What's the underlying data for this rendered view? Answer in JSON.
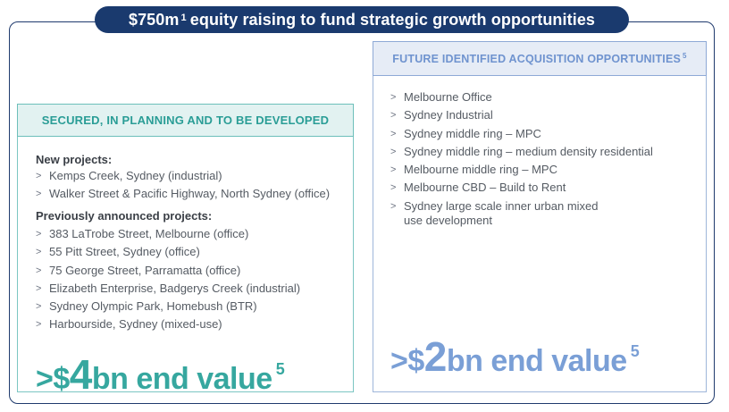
{
  "header": {
    "title_main": "$750m",
    "title_sup": "1",
    "title_rest": "equity raising to fund strategic growth opportunities"
  },
  "left": {
    "heading": "SECURED, IN PLANNING AND TO BE DEVELOPED",
    "new_label": "New projects:",
    "new_items": [
      "Kemps Creek, Sydney (industrial)",
      "Walker Street & Pacific Highway, North Sydney (office)"
    ],
    "prev_label": "Previously announced projects:",
    "prev_items": [
      "383 LaTrobe Street, Melbourne (office)",
      "55 Pitt Street, Sydney (office)",
      "75 George Street, Parramatta (office)",
      "Elizabeth Enterprise, Badgerys Creek (industrial)",
      "Sydney Olympic Park, Homebush (BTR)",
      "Harbourside, Sydney (mixed-use)"
    ],
    "value_prefix": ">$",
    "value_num": "4",
    "value_suffix": "bn end value",
    "value_sup": "5"
  },
  "right": {
    "heading": "FUTURE IDENTIFIED ACQUISITION OPPORTUNITIES",
    "heading_sup": "5",
    "items": [
      "Melbourne Office",
      "Sydney Industrial",
      "Sydney middle ring – MPC",
      "Sydney middle ring – medium density residential",
      "Melbourne middle ring – MPC",
      "Melbourne CBD – Build to Rent",
      "Sydney large scale inner urban mixed use development"
    ],
    "value_prefix": ">$",
    "value_num": "2",
    "value_suffix": "bn end value",
    "value_sup": "5"
  },
  "bullet_glyph": ">",
  "colors": {
    "navy": "#1a3a6e",
    "teal": "#36a79f",
    "blue": "#7a9fd6"
  }
}
